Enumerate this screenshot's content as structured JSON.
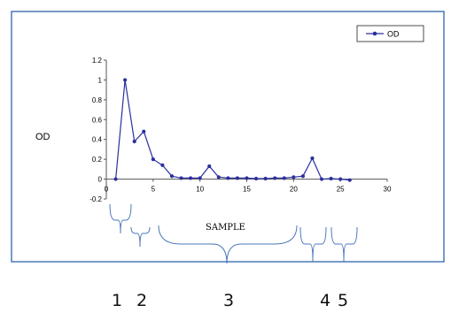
{
  "chart_data": {
    "type": "line",
    "title": "",
    "xlabel": "",
    "ylabel": "OD",
    "xlim": [
      0,
      30
    ],
    "ylim": [
      -0.2,
      1.2
    ],
    "x_ticks": [
      0,
      5,
      10,
      15,
      20,
      25,
      30
    ],
    "y_ticks": [
      -0.2,
      0,
      0.2,
      0.4,
      0.6,
      0.8,
      1,
      1.2
    ],
    "y_tick_labels": [
      "-0.2",
      "0",
      "0.2",
      "0.4",
      "0.6",
      "0.8",
      "1",
      "1.2"
    ],
    "legend_position": "top-right",
    "grid": false,
    "series": [
      {
        "name": "OD",
        "color": "#2b2f9e",
        "marker": "circle",
        "x": [
          1,
          2,
          3,
          4,
          5,
          6,
          7,
          8,
          9,
          10,
          11,
          12,
          13,
          14,
          15,
          16,
          17,
          18,
          19,
          20,
          21,
          22,
          23,
          24,
          25,
          26
        ],
        "y": [
          0,
          1.0,
          0.38,
          0.48,
          0.2,
          0.14,
          0.03,
          0.01,
          0.01,
          0.01,
          0.13,
          0.02,
          0.01,
          0.01,
          0.01,
          0.005,
          0.005,
          0.01,
          0.01,
          0.02,
          0.03,
          0.21,
          0.0,
          0.005,
          0.0,
          -0.01
        ]
      }
    ]
  },
  "annotations": {
    "sample_label": "SAMPLE",
    "groups": [
      "1",
      "2",
      "3",
      "4",
      "5"
    ]
  }
}
